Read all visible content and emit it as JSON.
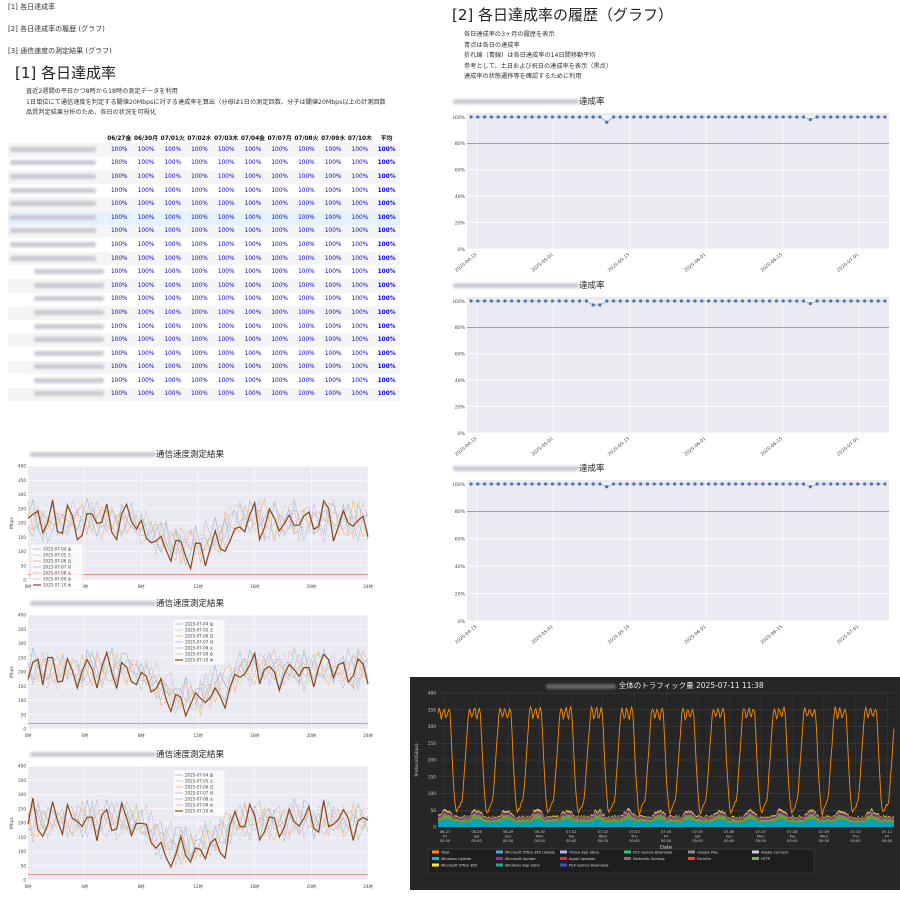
{
  "nav": [
    "[1] 各日達成率",
    "[2] 各日達成率の履歴 (グラフ)",
    "[3] 通信速度の測定結果 (グラフ)"
  ],
  "section1": {
    "title": "[1] 各日達成率",
    "bullets": [
      "直近2週間の平日かつ8時から18時の測定データを利用",
      "1日単位にて通信速度を判定する閾値20Mbpsに対する達成率を算出（分母は1日の測定回数、分子は閾値20Mbps以上の計測回数",
      "品質判定結果分析のため、各日の状況を可視化"
    ],
    "columns": [
      "06/27金",
      "06/30月",
      "07/01火",
      "07/02水",
      "07/03木",
      "07/04金",
      "07/07月",
      "07/08火",
      "07/09水",
      "07/10木",
      "平均"
    ],
    "rows": [
      {
        "values": [
          "100%",
          "100%",
          "100%",
          "100%",
          "100%",
          "100%",
          "100%",
          "100%",
          "100%",
          "100%",
          "100%"
        ]
      },
      {
        "values": [
          "100%",
          "100%",
          "100%",
          "100%",
          "100%",
          "100%",
          "100%",
          "100%",
          "100%",
          "100%",
          "100%"
        ]
      },
      {
        "values": [
          "100%",
          "100%",
          "100%",
          "100%",
          "100%",
          "100%",
          "100%",
          "100%",
          "100%",
          "100%",
          "100%"
        ]
      },
      {
        "values": [
          "100%",
          "100%",
          "100%",
          "100%",
          "100%",
          "100%",
          "100%",
          "100%",
          "100%",
          "100%",
          "100%"
        ]
      },
      {
        "values": [
          "100%",
          "100%",
          "100%",
          "100%",
          "100%",
          "100%",
          "100%",
          "100%",
          "100%",
          "100%",
          "100%"
        ]
      },
      {
        "values": [
          "100%",
          "100%",
          "100%",
          "100%",
          "100%",
          "100%",
          "100%",
          "100%",
          "100%",
          "100%",
          "100%"
        ]
      },
      {
        "values": [
          "100%",
          "100%",
          "100%",
          "100%",
          "100%",
          "100%",
          "100%",
          "100%",
          "100%",
          "100%",
          "100%"
        ]
      },
      {
        "values": [
          "100%",
          "100%",
          "100%",
          "100%",
          "100%",
          "100%",
          "100%",
          "100%",
          "100%",
          "100%",
          "100%"
        ]
      },
      {
        "values": [
          "100%",
          "100%",
          "100%",
          "100%",
          "100%",
          "100%",
          "100%",
          "100%",
          "100%",
          "100%",
          "100%"
        ]
      },
      {
        "values": [
          "100%",
          "100%",
          "100%",
          "100%",
          "100%",
          "100%",
          "100%",
          "100%",
          "100%",
          "100%",
          "100%"
        ]
      },
      {
        "values": [
          "100%",
          "100%",
          "100%",
          "100%",
          "100%",
          "100%",
          "100%",
          "100%",
          "100%",
          "100%",
          "100%"
        ]
      },
      {
        "values": [
          "100%",
          "100%",
          "100%",
          "100%",
          "100%",
          "100%",
          "100%",
          "100%",
          "100%",
          "100%",
          "100%"
        ]
      },
      {
        "values": [
          "100%",
          "100%",
          "100%",
          "100%",
          "100%",
          "100%",
          "100%",
          "100%",
          "100%",
          "100%",
          "100%"
        ]
      },
      {
        "values": [
          "100%",
          "100%",
          "100%",
          "100%",
          "100%",
          "100%",
          "100%",
          "100%",
          "100%",
          "100%",
          "100%"
        ]
      },
      {
        "values": [
          "100%",
          "100%",
          "100%",
          "100%",
          "100%",
          "100%",
          "100%",
          "100%",
          "100%",
          "100%",
          "100%"
        ]
      },
      {
        "values": [
          "100%",
          "100%",
          "100%",
          "100%",
          "100%",
          "100%",
          "100%",
          "100%",
          "100%",
          "100%",
          "100%"
        ]
      },
      {
        "values": [
          "100%",
          "100%",
          "100%",
          "100%",
          "100%",
          "100%",
          "100%",
          "100%",
          "100%",
          "100%",
          "100%"
        ]
      },
      {
        "values": [
          "100%",
          "100%",
          "100%",
          "100%",
          "100%",
          "100%",
          "100%",
          "100%",
          "100%",
          "100%",
          "100%"
        ]
      },
      {
        "values": [
          "100%",
          "100%",
          "100%",
          "100%",
          "100%",
          "100%",
          "100%",
          "100%",
          "100%",
          "100%",
          "100%"
        ]
      }
    ]
  },
  "section2": {
    "title": "[2] 各日達成率の履歴（グラフ）",
    "bullets": [
      "各日達成率の3ヶ月の履歴を表示",
      "青点は各日の達成率",
      "折れ線（青線）は各日達成率の14日間移動平均",
      "参考として、土日および祝日の達成率を表示（黒点）",
      "達成率の状態遷移等を確認するために利用"
    ]
  },
  "history_title_suffix": "達成率",
  "speed_title_suffix": "通信速度測定結果",
  "traffic_title": "全体のトラフィック量 2025-07-11 11:38",
  "accent_color": "#ff8c00",
  "chart_data": [
    {
      "type": "scatter",
      "y_ticks": [
        "0%",
        "20%",
        "40%",
        "60%",
        "80%",
        "100%"
      ],
      "x_ticks": [
        "2025-04-15",
        "2025-05-01",
        "2025-05-15",
        "2025-06-01",
        "2025-06-15",
        "2025-07-01"
      ],
      "threshold": 80,
      "ylim": [
        0,
        100
      ],
      "dips": [
        {
          "index": 20,
          "value": 96
        },
        {
          "index": 50,
          "value": 98
        }
      ]
    },
    {
      "type": "scatter",
      "y_ticks": [
        "0%",
        "20%",
        "40%",
        "60%",
        "80%",
        "100%"
      ],
      "x_ticks": [
        "2025-04-15",
        "2025-05-01",
        "2025-05-15",
        "2025-06-01",
        "2025-06-15",
        "2025-07-01"
      ],
      "threshold": 80,
      "ylim": [
        0,
        100
      ],
      "dips": [
        {
          "index": 18,
          "value": 97
        },
        {
          "index": 19,
          "value": 97
        },
        {
          "index": 50,
          "value": 98
        }
      ]
    },
    {
      "type": "scatter",
      "y_ticks": [
        "0%",
        "20%",
        "40%",
        "60%",
        "80%",
        "100%"
      ],
      "x_ticks": [
        "2025-04-15",
        "2025-05-01",
        "2025-05-15",
        "2025-06-01",
        "2025-06-15",
        "2025-07-01"
      ],
      "threshold": 80,
      "ylim": [
        0,
        100
      ],
      "dips": [
        {
          "index": 20,
          "value": 98
        },
        {
          "index": 50,
          "value": 98
        }
      ]
    },
    {
      "type": "line",
      "ylabel": "Mbps",
      "y_ticks": [
        "0",
        "50",
        "100",
        "150",
        "200",
        "250",
        "300",
        "350",
        "400"
      ],
      "x_ticks": [
        "0時",
        "4時",
        "8時",
        "12時",
        "16時",
        "20時",
        "24時"
      ],
      "legend": [
        "2025-07-04 金",
        "2025-07-05 土",
        "2025-07-06 日",
        "2025-07-07 月",
        "2025-07-08 火",
        "2025-07-09 水",
        "2025-07-10 木"
      ],
      "threshold": 20,
      "ylim": [
        0,
        400
      ]
    },
    {
      "type": "line",
      "ylabel": "Mbps",
      "y_ticks": [
        "0",
        "50",
        "100",
        "150",
        "200",
        "250",
        "300",
        "350",
        "400"
      ],
      "x_ticks": [
        "0時",
        "4時",
        "8時",
        "12時",
        "16時",
        "20時",
        "24時"
      ],
      "legend": [
        "2025-07-04 金",
        "2025-07-05 土",
        "2025-07-06 日",
        "2025-07-07 月",
        "2025-07-08 火",
        "2025-07-09 水",
        "2025-07-10 木"
      ],
      "threshold": 20,
      "ylim": [
        0,
        400
      ]
    },
    {
      "type": "line",
      "ylabel": "Mbps",
      "y_ticks": [
        "0",
        "50",
        "100",
        "150",
        "200",
        "250",
        "300",
        "350",
        "400"
      ],
      "x_ticks": [
        "0時",
        "4時",
        "8時",
        "12時",
        "16時",
        "20時",
        "24時"
      ],
      "legend": [
        "2025-07-04 金",
        "2025-07-05 土",
        "2025-07-06 日",
        "2025-07-07 月",
        "2025-07-08 火",
        "2025-07-09 水",
        "2025-07-10 木"
      ],
      "threshold": 20,
      "ylim": [
        0,
        400
      ]
    },
    {
      "type": "area",
      "ylabel": "Protocol(Gbps)",
      "xlabel": "Date",
      "y_ticks": [
        "0",
        "50",
        "100",
        "150",
        "200",
        "250",
        "300",
        "350",
        "400"
      ],
      "x_ticks": [
        "06-27\nFri\n00:00",
        "06-28\nSat\n00:00",
        "06-29\nSun\n00:00",
        "06-30\nMon\n00:00",
        "07-01\nTue\n00:00",
        "07-02\nWed\n00:00",
        "07-03\nThu\n00:00",
        "07-04\nFri\n00:00",
        "07-05\nSat\n00:00",
        "07-06\nSun\n00:00",
        "07-07\nMon\n00:00",
        "07-08\nTue\n00:00",
        "07-09\nWed\n00:00",
        "07-10\nThu\n00:00",
        "07-11\nFri\n00:00"
      ],
      "legend": [
        {
          "name": "Total",
          "color": "#ff8c00"
        },
        {
          "name": "Microsoft Office 365 Update",
          "color": "#4aa3df"
        },
        {
          "name": "iTunes App Store",
          "color": "#b0b0ff"
        },
        {
          "name": "PS5 Games Download",
          "color": "#2ecc71"
        },
        {
          "name": "Google Play",
          "color": "#888888"
        },
        {
          "name": "Adobe Connect",
          "color": "#cccccc"
        },
        {
          "name": "Windows Update",
          "color": "#00bcd4"
        },
        {
          "name": "Microsoft Update",
          "color": "#9c27b0"
        },
        {
          "name": "Apple Updates",
          "color": "#e91e63"
        },
        {
          "name": "Nintendo Gaming",
          "color": "#8d6e63"
        },
        {
          "name": "Fortnite",
          "color": "#f44336"
        },
        {
          "name": "HTTP",
          "color": "#7cb342"
        },
        {
          "name": "Microsoft Office 365",
          "color": "#ffeb3b"
        },
        {
          "name": "Windows App Store",
          "color": "#26a69a"
        },
        {
          "name": "PS4 Games Download",
          "color": "#3f51b5"
        }
      ],
      "ylim": [
        0,
        400
      ]
    }
  ]
}
